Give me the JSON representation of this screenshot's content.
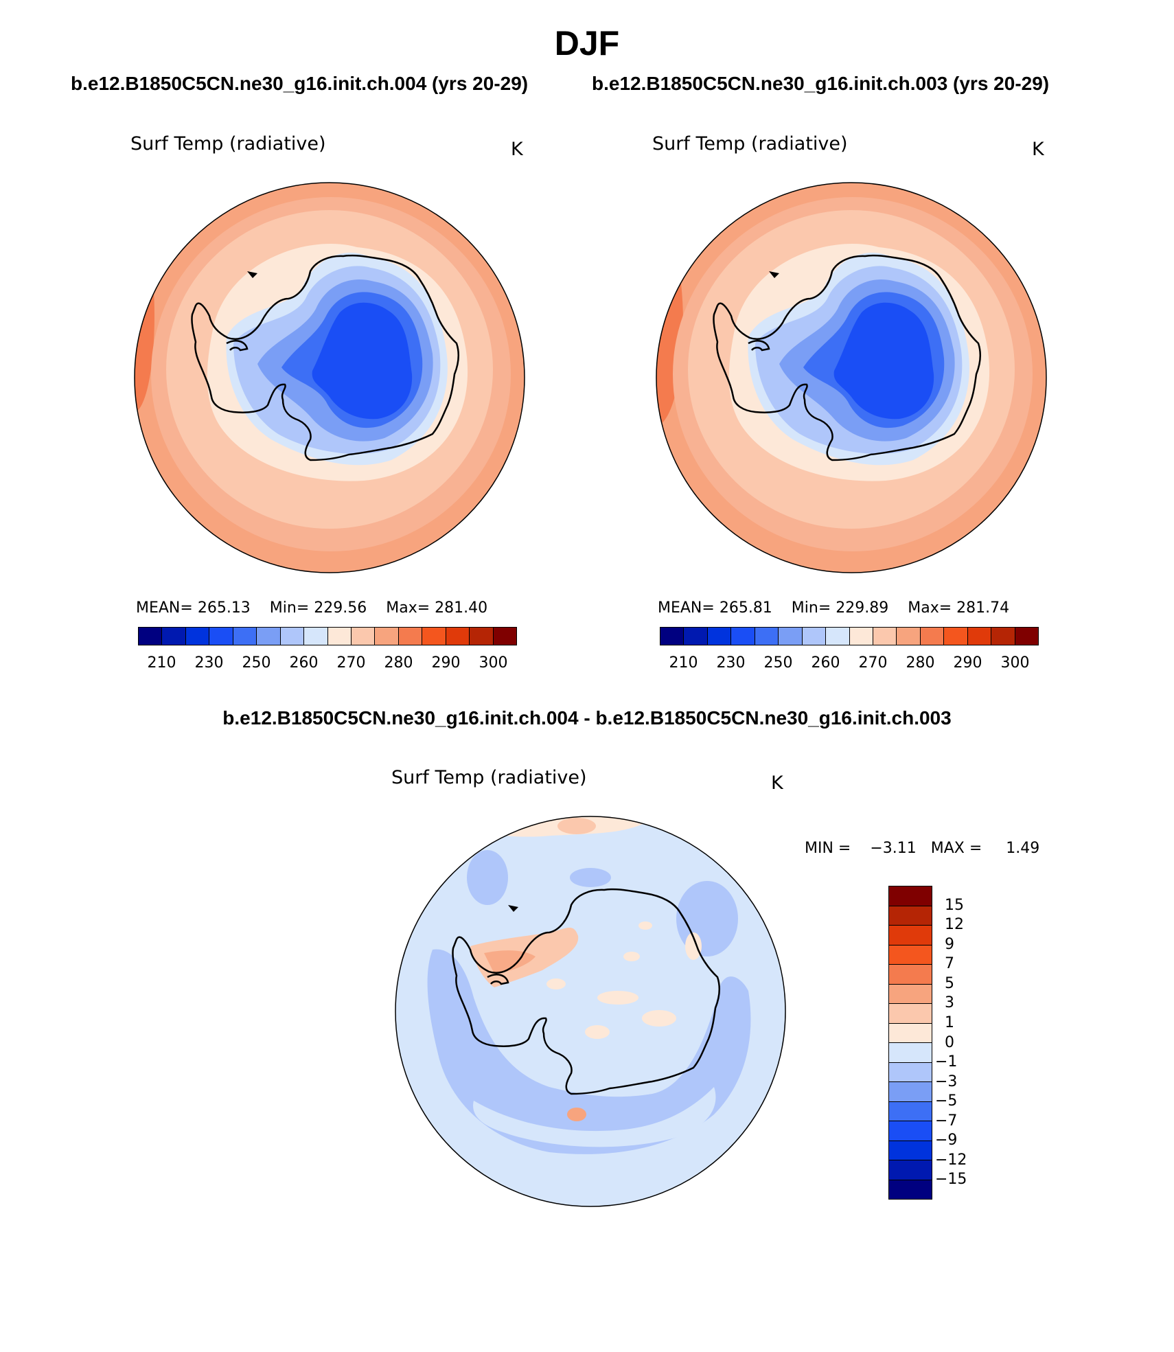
{
  "header": {
    "title": "DJF",
    "case1_title": "b.e12.B1850C5CN.ne30_g16.init.ch.004 (yrs 20-29)",
    "case2_title": "b.e12.B1850C5CN.ne30_g16.init.ch.003 (yrs 20-29)",
    "diff_title": "b.e12.B1850C5CN.ne30_g16.init.ch.004 - b.e12.B1850C5CN.ne30_g16.init.ch.003"
  },
  "panels": [
    {
      "variable": "Surf Temp (radiative)",
      "units": "K",
      "stats": {
        "mean_label": "MEAN=",
        "mean": "265.13",
        "min_label": "Min=",
        "min": "229.56",
        "max_label": "Max=",
        "max": "281.40"
      }
    },
    {
      "variable": "Surf Temp (radiative)",
      "units": "K",
      "stats": {
        "mean_label": "MEAN=",
        "mean": "265.81",
        "min_label": "Min=",
        "min": "229.89",
        "max_label": "Max=",
        "max": "281.74"
      }
    }
  ],
  "diff_panel": {
    "variable": "Surf Temp (radiative)",
    "units": "K",
    "min_label": "MIN =",
    "min": "−3.11",
    "max_label": "MAX =",
    "max": "1.49"
  },
  "colorbar_abs": {
    "colors": [
      "#000080",
      "#0019b0",
      "#0033dd",
      "#1a4ef5",
      "#3d6ff5",
      "#7a9ef5",
      "#afc6fa",
      "#d6e6fb",
      "#fde8d8",
      "#fbc8ad",
      "#f7a47e",
      "#f47b4e",
      "#f4561e",
      "#e03a0a",
      "#b52505",
      "#7f0000"
    ],
    "tick_labels": [
      "210",
      "230",
      "250",
      "260",
      "270",
      "280",
      "290",
      "300"
    ]
  },
  "colorbar_diff": {
    "colors": [
      "#7f0000",
      "#b52505",
      "#e03a0a",
      "#f4561e",
      "#f47b4e",
      "#f7a47e",
      "#fbc8ad",
      "#fde8d8",
      "#d6e6fb",
      "#afc6fa",
      "#7a9ef5",
      "#3d6ff5",
      "#1a4ef5",
      "#0033dd",
      "#0019b0",
      "#000080"
    ],
    "tick_labels": [
      "15",
      "12",
      "9",
      "7",
      "5",
      "3",
      "1",
      "0",
      "−1",
      "−3",
      "−5",
      "−7",
      "−9",
      "−12",
      "−15"
    ]
  }
}
